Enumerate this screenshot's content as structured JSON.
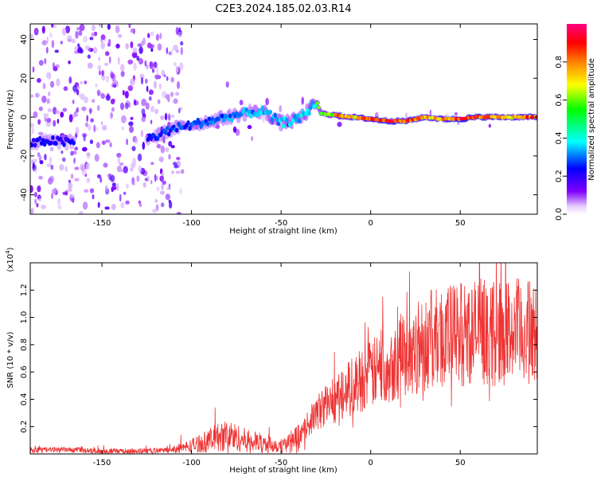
{
  "title": "C2E3.2024.185.02.03.R14",
  "chart_data": [
    {
      "type": "heatmap",
      "xlabel": "Height of straight line (km)",
      "ylabel": "Frequency (Hz)",
      "xlim": [
        -190,
        93
      ],
      "ylim": [
        -50,
        48
      ],
      "xticks": [
        -150,
        -100,
        -50,
        0,
        50
      ],
      "yticks": [
        -40,
        -20,
        0,
        20,
        40
      ],
      "colorbar": {
        "label": "Normalized spectral amplitude",
        "range": [
          0,
          1
        ],
        "ticks": [
          0.0,
          0.2,
          0.4,
          0.6,
          0.8
        ],
        "tick_labels": [
          "0.0",
          "0.2",
          "0.4",
          "0.6",
          "0.8"
        ],
        "colors": [
          "#ffffff",
          "#8000ff",
          "#0000ff",
          "#00ffff",
          "#00ff00",
          "#ffff00",
          "#ff8000",
          "#ff0000",
          "#ff0080"
        ]
      },
      "ridge": {
        "x": [
          -190,
          -180,
          -170,
          -165,
          -125,
          -120,
          -110,
          -100,
          -90,
          -80,
          -70,
          -60,
          -50,
          -40,
          -35,
          -30,
          -28,
          -20,
          -10,
          0,
          10,
          20,
          30,
          40,
          50,
          60,
          70,
          80,
          93
        ],
        "y": [
          -14,
          -12,
          -13,
          -13,
          -11,
          -10,
          -6,
          -4,
          -2,
          0,
          2,
          3,
          -3,
          -1,
          3,
          8,
          2,
          1,
          0,
          -1,
          -2,
          -2,
          0,
          -1,
          -1,
          0,
          0,
          0,
          0
        ]
      }
    },
    {
      "type": "line",
      "xlabel": "Height of straight line (km)",
      "ylabel": "SNR (10 * v/v)",
      "yscale_label": "(x10",
      "yscale_exp": "4",
      "yscale_close": ")",
      "xlim": [
        -190,
        93
      ],
      "ylim": [
        0,
        1.4
      ],
      "xticks": [
        -150,
        -100,
        -50,
        0,
        50
      ],
      "yticks": [
        0.2,
        0.4,
        0.6,
        0.8,
        1.0,
        1.2
      ],
      "ytick_labels": [
        "0.2",
        "0.4",
        "0.6",
        "0.8",
        "1.0",
        "1.2"
      ],
      "color": "#ee3333",
      "series": [
        {
          "name": "SNR",
          "x": [
            -190,
            -170,
            -150,
            -130,
            -110,
            -100,
            -90,
            -80,
            -70,
            -60,
            -50,
            -40,
            -35,
            -30,
            -25,
            -20,
            -15,
            -10,
            -5,
            0,
            5,
            10,
            15,
            20,
            25,
            30,
            40,
            50,
            60,
            70,
            80,
            93
          ],
          "y": [
            0.03,
            0.03,
            0.02,
            0.02,
            0.03,
            0.06,
            0.1,
            0.14,
            0.1,
            0.08,
            0.06,
            0.12,
            0.22,
            0.3,
            0.36,
            0.4,
            0.45,
            0.5,
            0.55,
            0.58,
            0.62,
            0.66,
            0.7,
            0.74,
            0.78,
            0.82,
            0.86,
            0.88,
            0.9,
            0.88,
            0.9,
            0.88
          ]
        }
      ]
    }
  ]
}
